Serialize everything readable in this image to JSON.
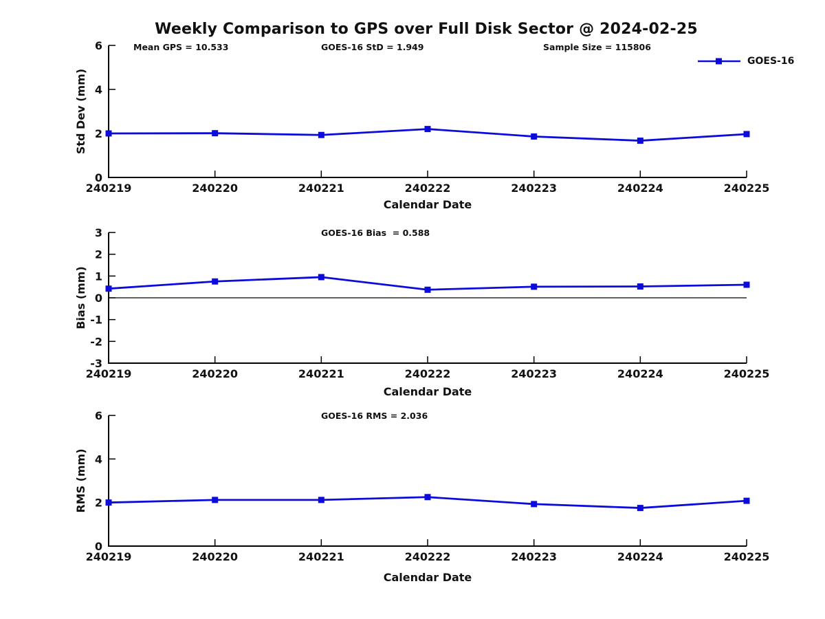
{
  "title": "Weekly Comparison to GPS over Full Disk Sector @ 2024-02-25",
  "legend": {
    "label": "GOES-16"
  },
  "colors": {
    "series": "#0b0bdb",
    "axis": "#000000",
    "text": "#111111"
  },
  "chart_data": [
    {
      "type": "line",
      "panel": "std-dev",
      "ylabel": "Std Dev (mm)",
      "xlabel": "Calendar Date",
      "categories": [
        "240219",
        "240220",
        "240221",
        "240222",
        "240223",
        "240224",
        "240225"
      ],
      "series": [
        {
          "name": "GOES-16",
          "values": [
            2.0,
            2.01,
            1.93,
            2.2,
            1.86,
            1.67,
            1.97
          ]
        }
      ],
      "ylim": [
        0,
        6
      ],
      "yticks": [
        0,
        2,
        4,
        6
      ],
      "zero_line": false,
      "grid": false,
      "legend_position": "top-right",
      "annotations": [
        "Mean GPS = 10.533",
        "GOES-16 StD = 1.949",
        "Sample Size = 115806"
      ]
    },
    {
      "type": "line",
      "panel": "bias",
      "ylabel": "Bias (mm)",
      "xlabel": "Calendar Date",
      "categories": [
        "240219",
        "240220",
        "240221",
        "240222",
        "240223",
        "240224",
        "240225"
      ],
      "series": [
        {
          "name": "GOES-16",
          "values": [
            0.42,
            0.75,
            0.95,
            0.37,
            0.51,
            0.52,
            0.6
          ]
        }
      ],
      "ylim": [
        -3,
        3
      ],
      "yticks": [
        -3,
        -2,
        -1,
        0,
        1,
        2,
        3
      ],
      "zero_line": true,
      "grid": false,
      "annotations": [
        "GOES-16 Bias  = 0.588"
      ]
    },
    {
      "type": "line",
      "panel": "rms",
      "ylabel": "RMS (mm)",
      "xlabel": "Calendar Date",
      "categories": [
        "240219",
        "240220",
        "240221",
        "240222",
        "240223",
        "240224",
        "240225"
      ],
      "series": [
        {
          "name": "GOES-16",
          "values": [
            2.0,
            2.12,
            2.12,
            2.25,
            1.93,
            1.75,
            2.08
          ]
        }
      ],
      "ylim": [
        0,
        6
      ],
      "yticks": [
        0,
        2,
        4,
        6
      ],
      "zero_line": false,
      "grid": false,
      "annotations": [
        "GOES-16 RMS = 2.036"
      ]
    }
  ]
}
